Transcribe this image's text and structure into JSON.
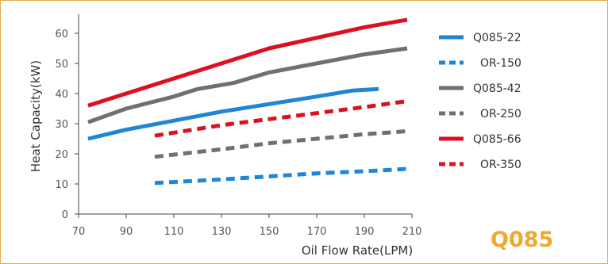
{
  "colors": {
    "blue": "#1f86d6",
    "gray": "#707070",
    "red": "#dd1021",
    "brand": "#f0a830",
    "border": "#e3a94a"
  },
  "brand_label": "Q085",
  "chart_data": {
    "type": "line",
    "title": "",
    "xlabel": "Oil Flow Rate(LPM)",
    "ylabel": "Heat Capacity(kW)",
    "xlim": [
      70,
      210
    ],
    "ylim": [
      0,
      65
    ],
    "xticks": [
      70,
      90,
      110,
      130,
      150,
      170,
      190,
      210
    ],
    "yticks": [
      0,
      10,
      20,
      30,
      40,
      50,
      60
    ],
    "grid": false,
    "legend_position": "right",
    "series": [
      {
        "name": "Q085-22",
        "color": "#1f86d6",
        "dash": false,
        "points": [
          [
            74,
            25
          ],
          [
            90,
            28
          ],
          [
            110,
            31
          ],
          [
            130,
            34
          ],
          [
            150,
            36.5
          ],
          [
            170,
            39
          ],
          [
            185,
            41
          ],
          [
            196,
            41.5
          ]
        ]
      },
      {
        "name": "OR-150",
        "color": "#1f86d6",
        "dash": true,
        "points": [
          [
            102,
            10.3
          ],
          [
            130,
            11.5
          ],
          [
            150,
            12.5
          ],
          [
            170,
            13.5
          ],
          [
            190,
            14.2
          ],
          [
            208,
            15
          ]
        ]
      },
      {
        "name": "Q085-42",
        "color": "#707070",
        "dash": false,
        "points": [
          [
            74,
            30.5
          ],
          [
            90,
            35
          ],
          [
            110,
            39
          ],
          [
            120,
            41.5
          ],
          [
            135,
            43.5
          ],
          [
            150,
            47
          ],
          [
            170,
            50
          ],
          [
            190,
            53
          ],
          [
            208,
            55
          ]
        ]
      },
      {
        "name": "OR-250",
        "color": "#707070",
        "dash": true,
        "points": [
          [
            102,
            19
          ],
          [
            130,
            21.5
          ],
          [
            150,
            23.5
          ],
          [
            170,
            25
          ],
          [
            190,
            26.5
          ],
          [
            208,
            27.5
          ]
        ]
      },
      {
        "name": "Q085-66",
        "color": "#dd1021",
        "dash": false,
        "points": [
          [
            74,
            36
          ],
          [
            90,
            40
          ],
          [
            110,
            45
          ],
          [
            130,
            50
          ],
          [
            150,
            55
          ],
          [
            170,
            58.5
          ],
          [
            190,
            62
          ],
          [
            208,
            64.5
          ]
        ]
      },
      {
        "name": "OR-350",
        "color": "#dd1021",
        "dash": true,
        "points": [
          [
            102,
            26
          ],
          [
            130,
            29.5
          ],
          [
            150,
            31.5
          ],
          [
            170,
            33.5
          ],
          [
            190,
            35.5
          ],
          [
            208,
            37.5
          ]
        ]
      }
    ]
  }
}
